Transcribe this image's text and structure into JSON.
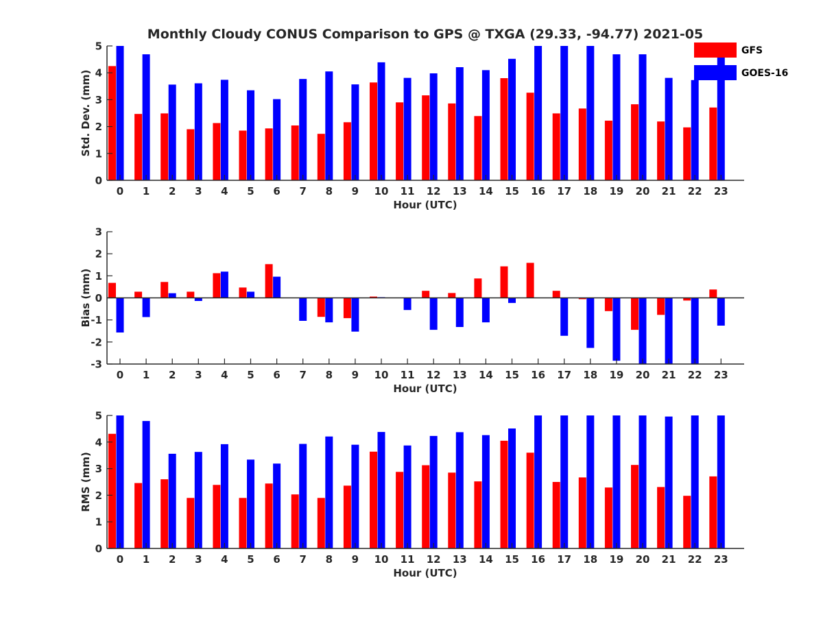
{
  "title": "Monthly Cloudy CONUS Comparison to GPS @ TXGA (29.33, -94.77) 2021-05",
  "legend": {
    "placement": "top-right",
    "entries": [
      {
        "label": "GFS",
        "color": "#ff0000"
      },
      {
        "label": "GOES-16",
        "color": "#0000ff"
      }
    ]
  },
  "chart_data": [
    {
      "type": "bar",
      "xlabel": "Hour (UTC)",
      "ylabel": "Std. Dev. (mm)",
      "ylim": [
        0,
        5
      ],
      "yticks": [
        0,
        1,
        2,
        3,
        4,
        5
      ],
      "categories": [
        "0",
        "1",
        "2",
        "3",
        "4",
        "5",
        "6",
        "7",
        "8",
        "9",
        "10",
        "11",
        "12",
        "13",
        "14",
        "15",
        "16",
        "17",
        "18",
        "19",
        "20",
        "21",
        "22",
        "23"
      ],
      "series": [
        {
          "name": "GFS",
          "color": "#ff0000",
          "values": [
            4.25,
            2.47,
            2.49,
            1.9,
            2.13,
            1.85,
            1.93,
            2.04,
            1.73,
            2.16,
            3.64,
            2.9,
            3.16,
            2.86,
            2.39,
            3.8,
            3.26,
            2.49,
            2.67,
            2.22,
            2.83,
            2.19,
            1.97,
            2.71
          ]
        },
        {
          "name": "GOES-16",
          "color": "#0000ff",
          "values": [
            5.0,
            4.69,
            3.56,
            3.61,
            3.74,
            3.35,
            3.02,
            3.77,
            4.05,
            3.57,
            4.39,
            3.81,
            3.98,
            4.21,
            4.1,
            4.52,
            5.0,
            5.0,
            5.0,
            4.69,
            4.69,
            3.81,
            3.73,
            5.0
          ]
        }
      ]
    },
    {
      "type": "bar",
      "xlabel": "Hour (UTC)",
      "ylabel": "Bias (mm)",
      "ylim": [
        -3,
        3
      ],
      "yticks": [
        -3,
        -2,
        -1,
        0,
        1,
        2,
        3
      ],
      "zero_line": true,
      "categories": [
        "0",
        "1",
        "2",
        "3",
        "4",
        "5",
        "6",
        "7",
        "8",
        "9",
        "10",
        "11",
        "12",
        "13",
        "14",
        "15",
        "16",
        "17",
        "18",
        "19",
        "20",
        "21",
        "22",
        "23"
      ],
      "series": [
        {
          "name": "GFS",
          "color": "#ff0000",
          "values": [
            0.68,
            0.28,
            0.72,
            0.28,
            1.12,
            0.47,
            1.53,
            0.0,
            -0.86,
            -0.92,
            0.06,
            0.0,
            0.32,
            0.22,
            0.88,
            1.43,
            1.59,
            0.32,
            -0.06,
            -0.6,
            -1.45,
            -0.77,
            -0.12,
            0.38
          ]
        },
        {
          "name": "GOES-16",
          "color": "#0000ff",
          "values": [
            -1.57,
            -0.87,
            0.21,
            -0.14,
            1.19,
            0.28,
            0.96,
            -1.04,
            -1.11,
            -1.53,
            0.03,
            -0.55,
            -1.45,
            -1.32,
            -1.11,
            -0.23,
            0.0,
            -1.72,
            -2.27,
            -2.85,
            -3.0,
            -3.0,
            -3.0,
            -1.26
          ]
        }
      ]
    },
    {
      "type": "bar",
      "xlabel": "Hour (UTC)",
      "ylabel": "RMS (mm)",
      "ylim": [
        0,
        5
      ],
      "yticks": [
        0,
        1,
        2,
        3,
        4,
        5
      ],
      "categories": [
        "0",
        "1",
        "2",
        "3",
        "4",
        "5",
        "6",
        "7",
        "8",
        "9",
        "10",
        "11",
        "12",
        "13",
        "14",
        "15",
        "16",
        "17",
        "18",
        "19",
        "20",
        "21",
        "22",
        "23"
      ],
      "series": [
        {
          "name": "GFS",
          "color": "#ff0000",
          "values": [
            4.31,
            2.46,
            2.6,
            1.9,
            2.39,
            1.9,
            2.44,
            2.03,
            1.9,
            2.36,
            3.64,
            2.88,
            3.13,
            2.85,
            2.52,
            4.05,
            3.6,
            2.5,
            2.67,
            2.29,
            3.14,
            2.31,
            1.98,
            2.71
          ]
        },
        {
          "name": "GOES-16",
          "color": "#0000ff",
          "values": [
            5.0,
            4.79,
            3.56,
            3.63,
            3.92,
            3.34,
            3.19,
            3.93,
            4.21,
            3.9,
            4.38,
            3.87,
            4.23,
            4.37,
            4.26,
            4.51,
            5.0,
            5.0,
            5.0,
            5.0,
            5.0,
            4.96,
            5.0,
            5.0
          ]
        }
      ]
    }
  ]
}
